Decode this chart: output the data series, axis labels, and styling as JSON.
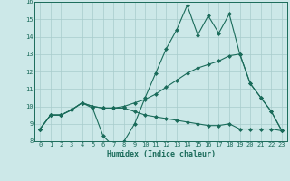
{
  "title": "",
  "xlabel": "Humidex (Indice chaleur)",
  "xlim": [
    -0.5,
    23.5
  ],
  "ylim": [
    8,
    16
  ],
  "xticks": [
    0,
    1,
    2,
    3,
    4,
    5,
    6,
    7,
    8,
    9,
    10,
    11,
    12,
    13,
    14,
    15,
    16,
    17,
    18,
    19,
    20,
    21,
    22,
    23
  ],
  "yticks": [
    8,
    9,
    10,
    11,
    12,
    13,
    14,
    15,
    16
  ],
  "bg_color": "#cce8e8",
  "grid_color": "#a8cccc",
  "line_color": "#1a6b5a",
  "series": [
    [
      8.7,
      9.5,
      9.5,
      9.8,
      10.2,
      9.9,
      8.3,
      7.7,
      8.0,
      9.0,
      10.5,
      11.9,
      13.3,
      14.4,
      15.8,
      14.1,
      15.2,
      14.2,
      15.3,
      13.0,
      11.3,
      10.5,
      9.7,
      8.6
    ],
    [
      8.7,
      9.5,
      9.5,
      9.8,
      10.2,
      10.0,
      9.9,
      9.9,
      10.0,
      10.2,
      10.4,
      10.7,
      11.1,
      11.5,
      11.9,
      12.2,
      12.4,
      12.6,
      12.9,
      13.0,
      11.3,
      10.5,
      9.7,
      8.6
    ],
    [
      8.7,
      9.5,
      9.5,
      9.8,
      10.2,
      10.0,
      9.9,
      9.9,
      9.9,
      9.7,
      9.5,
      9.4,
      9.3,
      9.2,
      9.1,
      9.0,
      8.9,
      8.9,
      9.0,
      8.7,
      8.7,
      8.7,
      8.7,
      8.6
    ]
  ]
}
